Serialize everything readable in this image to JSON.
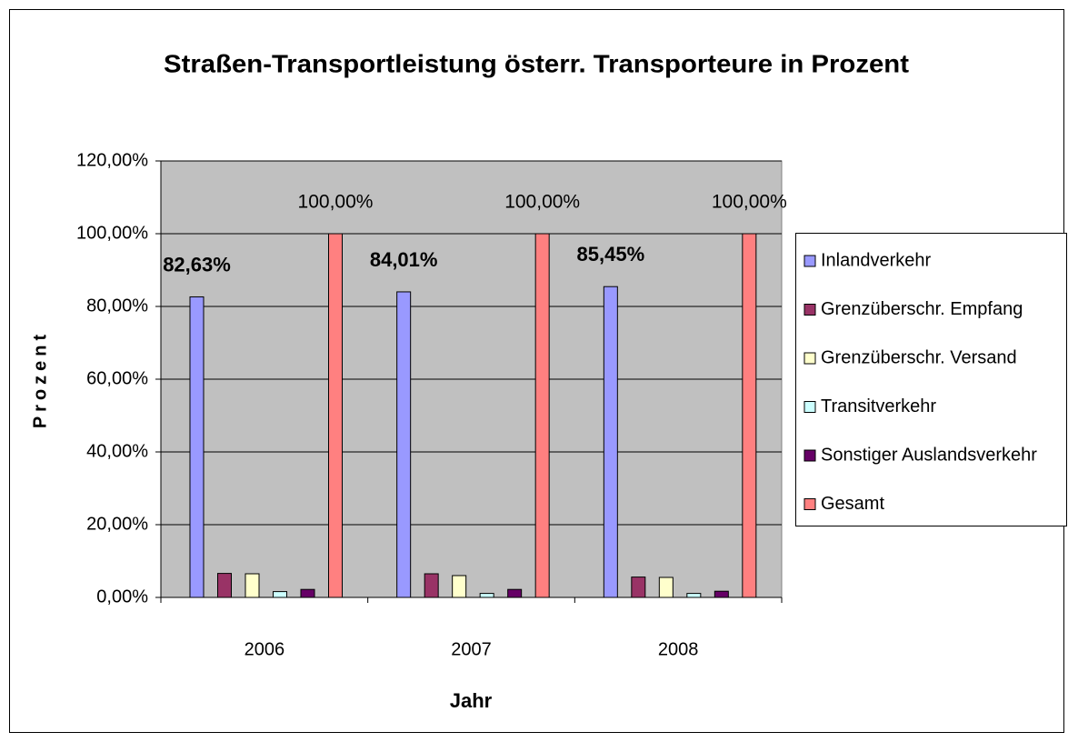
{
  "chart_data": {
    "type": "bar",
    "title": "Straßen-Transportleistung österr. Transporteure in Prozent",
    "x_label": "Jahr",
    "y_label": "Prozent",
    "categories": [
      "2006",
      "2007",
      "2008"
    ],
    "series": [
      {
        "name": "Inlandverkehr",
        "color": "#9999ff",
        "values": [
          82.63,
          84.01,
          85.45
        ],
        "value_labels": [
          "82,63%",
          "84,01%",
          "85,45%"
        ]
      },
      {
        "name": "Grenzüberschr. Empfang",
        "color": "#993366",
        "values": [
          6.6,
          6.5,
          5.6
        ]
      },
      {
        "name": "Grenzüberschr. Versand",
        "color": "#ffffcc",
        "values": [
          6.5,
          6.0,
          5.5
        ]
      },
      {
        "name": "Transitverkehr",
        "color": "#ccffff",
        "values": [
          1.6,
          1.1,
          1.1
        ]
      },
      {
        "name": "Sonstiger Auslandsverkehr",
        "color": "#660066",
        "values": [
          2.2,
          2.2,
          1.7
        ]
      },
      {
        "name": "Gesamt",
        "color": "#ff8080",
        "values": [
          100,
          100,
          100
        ],
        "value_labels": [
          "100,00%",
          "100,00%",
          "100,00%"
        ]
      }
    ],
    "ylim": [
      0,
      120
    ],
    "yticks": [
      {
        "value": 0,
        "label": "0,00%"
      },
      {
        "value": 20,
        "label": "20,00%"
      },
      {
        "value": 40,
        "label": "40,00%"
      },
      {
        "value": 60,
        "label": "60,00%"
      },
      {
        "value": 80,
        "label": "80,00%"
      },
      {
        "value": 100,
        "label": "100,00%"
      },
      {
        "value": 120,
        "label": "120,00%"
      }
    ],
    "grid": true,
    "legend": "right",
    "plot_background": "#c0c0c0"
  }
}
